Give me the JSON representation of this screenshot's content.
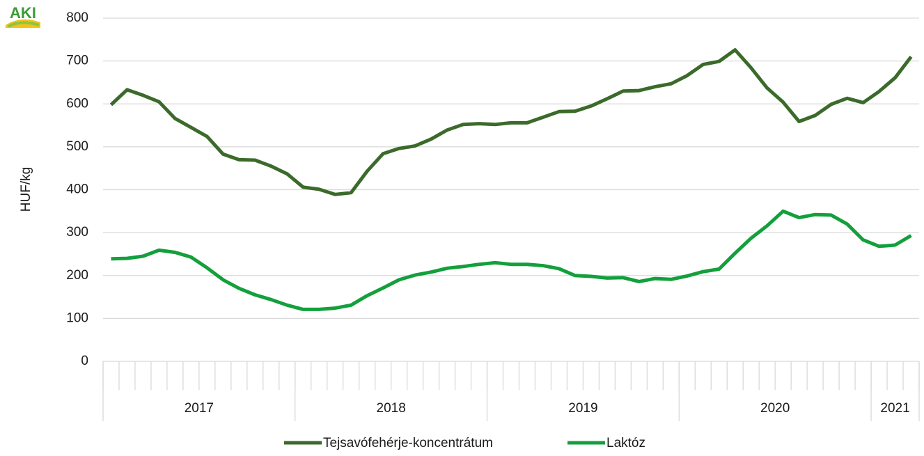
{
  "logo": "AKI",
  "chart_data": {
    "type": "line",
    "y_label": "HUF/kg",
    "categories": [
      null,
      null,
      null,
      null,
      null,
      null,
      null,
      null,
      null,
      null,
      null,
      null,
      null,
      null,
      null,
      null,
      null,
      null,
      null,
      null,
      null,
      null,
      null,
      null,
      null,
      null,
      null,
      null,
      null,
      null,
      null,
      null,
      null,
      null,
      null,
      null,
      null,
      null,
      null,
      null,
      null,
      null,
      null,
      null,
      null,
      null,
      null,
      null,
      null,
      null,
      null
    ],
    "x_groups": [
      {
        "label": "2017",
        "count": 12
      },
      {
        "label": "2018",
        "count": 12
      },
      {
        "label": "2019",
        "count": 12
      },
      {
        "label": "2020",
        "count": 12
      },
      {
        "label": "2021",
        "count": 3
      }
    ],
    "series": [
      {
        "name": "Tejsavófehérje-koncentrátum",
        "color": "#3b6a2a",
        "values": [
          598,
          633,
          620,
          605,
          566,
          545,
          524,
          483,
          470,
          469,
          455,
          437,
          406,
          401,
          389,
          393,
          443,
          484,
          496,
          502,
          518,
          539,
          552,
          554,
          552,
          556,
          556,
          569,
          582,
          583,
          595,
          612,
          630,
          631,
          640,
          647,
          666,
          692,
          699,
          726,
          684,
          637,
          604,
          559,
          573,
          599,
          613,
          603,
          629,
          661,
          710
        ]
      },
      {
        "name": "Laktóz",
        "color": "#13a03c",
        "values": [
          239,
          240,
          245,
          259,
          254,
          243,
          218,
          190,
          170,
          155,
          144,
          131,
          121,
          121,
          124,
          131,
          153,
          171,
          190,
          201,
          208,
          217,
          221,
          226,
          230,
          226,
          226,
          223,
          216,
          200,
          198,
          194,
          195,
          186,
          193,
          191,
          199,
          209,
          215,
          252,
          287,
          316,
          350,
          335,
          342,
          341,
          320,
          283,
          268,
          271,
          293
        ]
      }
    ],
    "ylim": [
      0,
      800
    ],
    "yticks": [
      0,
      100,
      200,
      300,
      400,
      500,
      600,
      700,
      800
    ],
    "grid": true,
    "legend": "bottom"
  }
}
